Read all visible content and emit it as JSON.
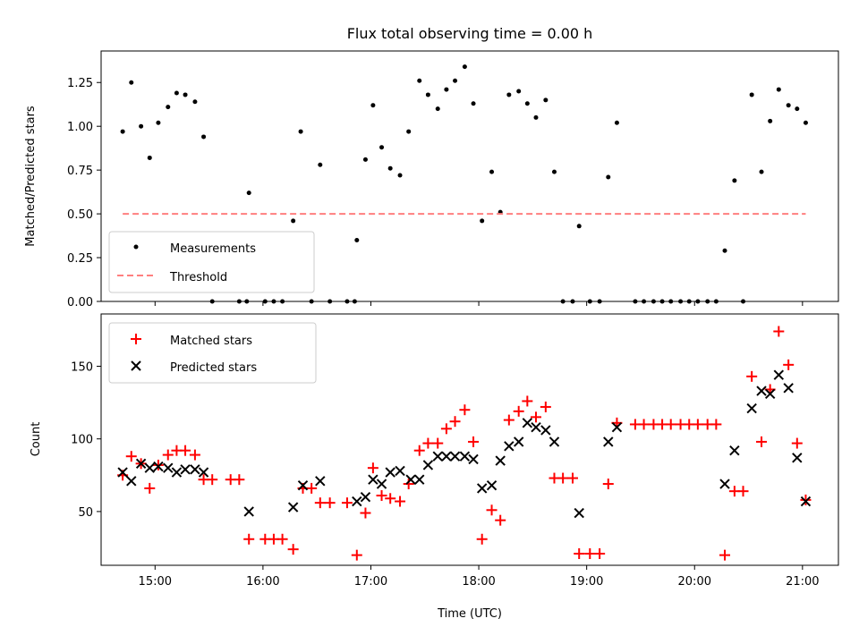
{
  "chart_data": [
    {
      "type": "scatter",
      "title": "Flux total observing time = 0.00 h",
      "xlabel": "",
      "ylabel": "Matched/Predicted stars",
      "xlim": [
        14.5,
        21.333
      ],
      "ylim": [
        0.0,
        1.43
      ],
      "yticks": [
        0.0,
        0.25,
        0.5,
        0.75,
        1.0,
        1.25
      ],
      "ytick_labels": [
        "0.00",
        "0.25",
        "0.50",
        "0.75",
        "1.00",
        "1.25"
      ],
      "xticks": [
        15,
        16,
        17,
        18,
        19,
        20,
        21
      ],
      "legend": {
        "position": "lower-left",
        "entries": [
          "Measurements",
          "Threshold"
        ]
      },
      "series": [
        {
          "name": "Measurements",
          "marker": "dot",
          "color": "#000000",
          "x": [
            14.7,
            14.78,
            14.87,
            14.95,
            15.03,
            15.12,
            15.2,
            15.28,
            15.37,
            15.45,
            15.53,
            15.78,
            15.87,
            15.85,
            16.02,
            16.1,
            16.18,
            16.28,
            16.35,
            16.45,
            16.53,
            16.62,
            16.78,
            16.85,
            16.87,
            16.95,
            17.02,
            17.1,
            17.18,
            17.27,
            17.35,
            17.45,
            17.53,
            17.62,
            17.7,
            17.78,
            17.87,
            17.95,
            18.03,
            18.12,
            18.2,
            18.28,
            18.37,
            18.45,
            18.53,
            18.62,
            18.7,
            18.78,
            18.87,
            18.93,
            19.03,
            19.12,
            19.2,
            19.28,
            19.45,
            19.53,
            19.62,
            19.7,
            19.78,
            19.87,
            19.95,
            20.03,
            20.12,
            20.2,
            20.28,
            20.37,
            20.45,
            20.53,
            20.62,
            20.7,
            20.78,
            20.87,
            20.95,
            21.03
          ],
          "y": [
            0.97,
            1.25,
            1.0,
            0.82,
            1.02,
            1.11,
            1.19,
            1.18,
            1.14,
            0.94,
            0.0,
            0.0,
            0.62,
            0.0,
            0.0,
            0.0,
            0.0,
            0.46,
            0.97,
            0.0,
            0.78,
            0.0,
            0.0,
            0.0,
            0.35,
            0.81,
            1.12,
            0.88,
            0.76,
            0.72,
            0.97,
            1.26,
            1.18,
            1.1,
            1.21,
            1.26,
            1.34,
            1.13,
            0.46,
            0.74,
            0.51,
            1.18,
            1.2,
            1.13,
            1.05,
            1.15,
            0.74,
            0.0,
            0.0,
            0.43,
            0.0,
            0.0,
            0.71,
            1.02,
            0.0,
            0.0,
            0.0,
            0.0,
            0.0,
            0.0,
            0.0,
            0.0,
            0.0,
            0.0,
            0.29,
            0.69,
            0.0,
            1.18,
            0.74,
            1.03,
            1.21,
            1.12,
            1.1,
            1.02
          ]
        },
        {
          "name": "Threshold",
          "style": "dashed",
          "color": "#ff7f7f",
          "x": [
            14.7,
            21.03
          ],
          "y": [
            0.5,
            0.5
          ]
        }
      ]
    },
    {
      "type": "scatter",
      "title": "",
      "xlabel": "Time (UTC)",
      "ylabel": "Count",
      "xlim": [
        14.5,
        21.333
      ],
      "ylim": [
        13,
        186
      ],
      "yticks": [
        50,
        100,
        150
      ],
      "ytick_labels": [
        "50",
        "100",
        "150"
      ],
      "xticks": [
        15,
        16,
        17,
        18,
        19,
        20,
        21
      ],
      "xtick_labels": [
        "15:00",
        "16:00",
        "17:00",
        "18:00",
        "19:00",
        "20:00",
        "21:00"
      ],
      "legend": {
        "position": "upper-left",
        "entries": [
          "Matched stars",
          "Predicted stars"
        ]
      },
      "series": [
        {
          "name": "Matched stars",
          "marker": "plus",
          "color": "#ff0000",
          "x": [
            14.7,
            14.78,
            14.87,
            14.95,
            15.03,
            15.12,
            15.2,
            15.28,
            15.37,
            15.45,
            15.53,
            15.7,
            15.78,
            15.87,
            16.02,
            16.1,
            16.18,
            16.28,
            16.37,
            16.45,
            16.53,
            16.62,
            16.78,
            16.87,
            16.95,
            17.02,
            17.1,
            17.18,
            17.27,
            17.35,
            17.45,
            17.53,
            17.62,
            17.7,
            17.78,
            17.87,
            17.95,
            18.03,
            18.12,
            18.2,
            18.28,
            18.37,
            18.45,
            18.53,
            18.62,
            18.7,
            18.78,
            18.87,
            18.93,
            19.03,
            19.12,
            19.2,
            19.28,
            19.45,
            19.53,
            19.62,
            19.7,
            19.78,
            19.87,
            19.95,
            20.03,
            20.12,
            20.2,
            20.28,
            20.37,
            20.45,
            20.53,
            20.62,
            20.7,
            20.78,
            20.87,
            20.95,
            21.03
          ],
          "y": [
            75,
            88,
            83,
            66,
            82,
            89,
            92,
            92,
            89,
            72,
            72,
            72,
            72,
            31,
            31,
            31,
            31,
            24,
            66,
            66,
            56,
            56,
            56,
            20,
            49,
            80,
            61,
            59,
            57,
            69,
            92,
            97,
            97,
            107,
            112,
            120,
            98,
            31,
            51,
            44,
            113,
            119,
            126,
            115,
            122,
            73,
            73,
            73,
            21,
            21,
            21,
            69,
            111,
            110,
            110,
            110,
            110,
            110,
            110,
            110,
            110,
            110,
            110,
            20,
            64,
            64,
            143,
            98,
            134,
            174,
            151,
            97,
            58
          ]
        },
        {
          "name": "Predicted stars",
          "marker": "x",
          "color": "#000000",
          "x": [
            14.7,
            14.78,
            14.87,
            14.95,
            15.03,
            15.12,
            15.2,
            15.28,
            15.37,
            15.45,
            15.87,
            16.28,
            16.37,
            16.53,
            16.87,
            16.95,
            17.02,
            17.1,
            17.18,
            17.27,
            17.37,
            17.45,
            17.53,
            17.62,
            17.7,
            17.78,
            17.87,
            17.95,
            18.03,
            18.12,
            18.2,
            18.28,
            18.37,
            18.45,
            18.53,
            18.62,
            18.7,
            18.93,
            19.2,
            19.28,
            20.28,
            20.37,
            20.53,
            20.62,
            20.7,
            20.78,
            20.87,
            20.95,
            21.03
          ],
          "y": [
            77,
            71,
            83,
            80,
            81,
            80,
            77,
            79,
            79,
            77,
            50,
            53,
            68,
            71,
            57,
            60,
            72,
            69,
            77,
            78,
            72,
            72,
            82,
            88,
            88,
            88,
            88,
            86,
            66,
            68,
            85,
            95,
            98,
            111,
            108,
            106,
            98,
            49,
            98,
            108,
            69,
            92,
            121,
            133,
            131,
            144,
            135,
            87,
            57
          ]
        }
      ]
    }
  ]
}
